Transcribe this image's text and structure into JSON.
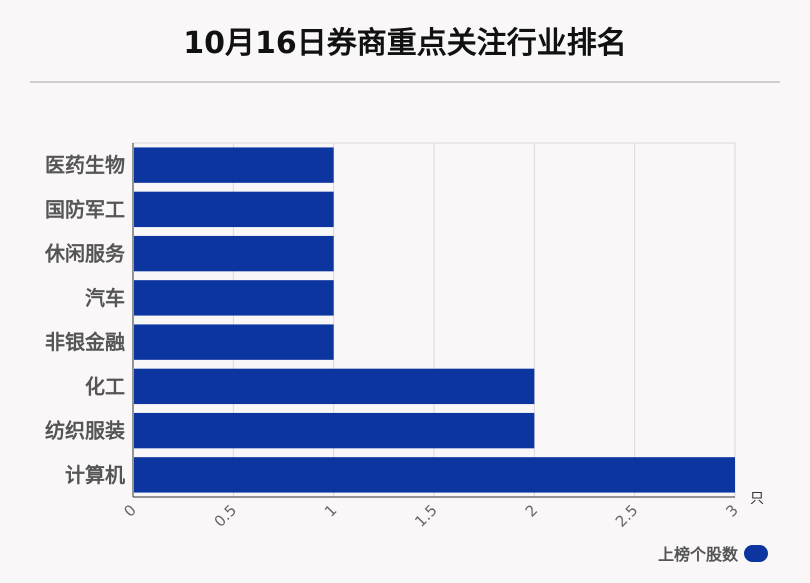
{
  "chart_data": {
    "type": "bar",
    "orientation": "horizontal",
    "title": "10月16日券商重点关注行业排名",
    "categories": [
      "医药生物",
      "国防军工",
      "休闲服务",
      "汽车",
      "非银金融",
      "化工",
      "纺织服装",
      "计算机"
    ],
    "series": [
      {
        "name": "上榜个股数",
        "values": [
          1,
          1,
          1,
          1,
          1,
          2,
          2,
          3
        ]
      }
    ],
    "xlim": [
      0,
      3
    ],
    "xticks": [
      "0",
      "0.5",
      "1",
      "1.5",
      "2",
      "2.5",
      "3"
    ],
    "x_unit": "只",
    "grid": true,
    "legend": "bottom-right",
    "color": "#0d35a0"
  }
}
